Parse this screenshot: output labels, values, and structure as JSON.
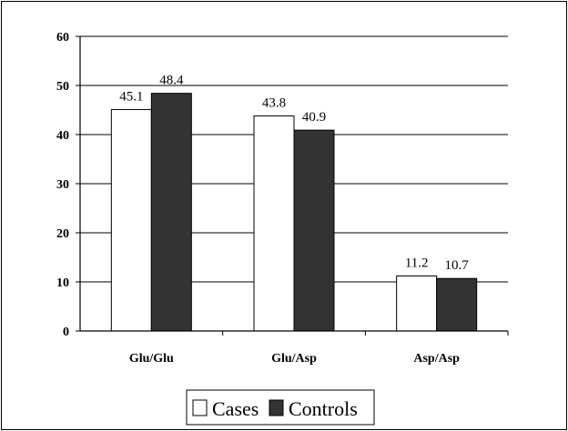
{
  "chart_data": {
    "type": "bar",
    "categories": [
      "Glu/Glu",
      "Glu/Asp",
      "Asp/Asp"
    ],
    "series": [
      {
        "name": "Cases",
        "values": [
          45.1,
          43.8,
          11.2
        ],
        "color": "#ffffff"
      },
      {
        "name": "Controls",
        "values": [
          48.4,
          40.9,
          10.7
        ],
        "color": "#333333"
      }
    ],
    "data_labels": [
      [
        "45.1",
        "43.8",
        "11.2"
      ],
      [
        "48.4",
        "40.9",
        "10.7"
      ]
    ],
    "ylim": [
      0,
      60
    ],
    "yticks": [
      0,
      10,
      20,
      30,
      40,
      50,
      60
    ],
    "grid": true,
    "legend": "bottom",
    "title": "",
    "xlabel": "",
    "ylabel": ""
  }
}
